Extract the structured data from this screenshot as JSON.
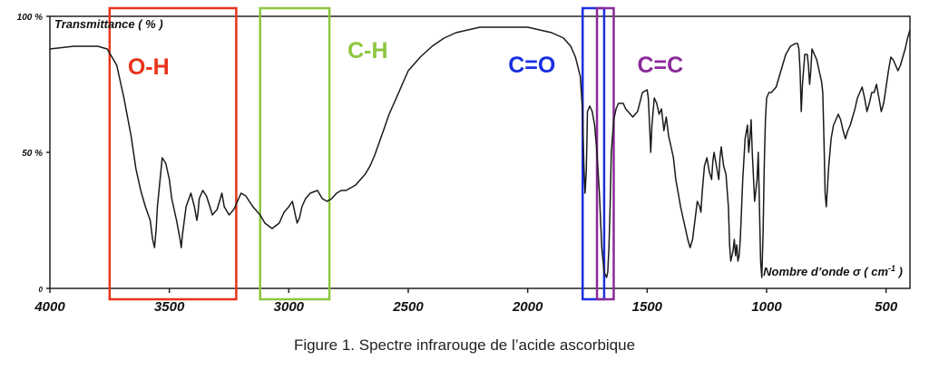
{
  "chart_data": {
    "type": "line",
    "title": "",
    "ylabel": "Transmittance  ( % )",
    "xlabel": "Nombre d’onde  σ  ( cm",
    "xlabel_sup": "-1",
    "x_reversed": true,
    "xlim": [
      4000,
      400
    ],
    "ylim": [
      0,
      100
    ],
    "grid": false,
    "x_ticks": [
      4000,
      3500,
      3000,
      2500,
      2000,
      1500,
      1000,
      500
    ],
    "y_ticks": [
      {
        "value": 100,
        "label": "100 %"
      },
      {
        "value": 50,
        "label": "50 %"
      },
      {
        "value": 0,
        "label": "0"
      }
    ],
    "series": [
      {
        "color": "#1a1a1a",
        "x": [
          4000,
          3900,
          3800,
          3760,
          3720,
          3690,
          3660,
          3640,
          3620,
          3600,
          3580,
          3570,
          3562,
          3555,
          3550,
          3530,
          3515,
          3500,
          3490,
          3470,
          3455,
          3450,
          3445,
          3430,
          3410,
          3395,
          3385,
          3380,
          3375,
          3360,
          3345,
          3330,
          3320,
          3300,
          3290,
          3280,
          3270,
          3250,
          3230,
          3200,
          3180,
          3150,
          3120,
          3100,
          3070,
          3040,
          3020,
          3000,
          2985,
          2975,
          2965,
          2955,
          2945,
          2930,
          2910,
          2880,
          2860,
          2840,
          2820,
          2800,
          2780,
          2760,
          2740,
          2720,
          2700,
          2680,
          2660,
          2640,
          2620,
          2600,
          2580,
          2560,
          2540,
          2520,
          2500,
          2450,
          2400,
          2350,
          2300,
          2250,
          2200,
          2150,
          2100,
          2050,
          2000,
          1950,
          1900,
          1850,
          1820,
          1800,
          1780,
          1770,
          1765,
          1760,
          1755,
          1752,
          1750,
          1745,
          1740,
          1730,
          1720,
          1710,
          1700,
          1690,
          1680,
          1670,
          1665,
          1660,
          1655,
          1650,
          1640,
          1630,
          1620,
          1610,
          1600,
          1590,
          1580,
          1560,
          1540,
          1520,
          1500,
          1495,
          1490,
          1485,
          1480,
          1470,
          1460,
          1450,
          1440,
          1430,
          1420,
          1410,
          1400,
          1390,
          1380,
          1370,
          1360,
          1350,
          1340,
          1330,
          1320,
          1310,
          1300,
          1290,
          1280,
          1275,
          1270,
          1265,
          1260,
          1250,
          1240,
          1230,
          1225,
          1220,
          1210,
          1200,
          1195,
          1190,
          1180,
          1170,
          1160,
          1155,
          1150,
          1140,
          1135,
          1130,
          1125,
          1120,
          1115,
          1110,
          1100,
          1090,
          1080,
          1075,
          1070,
          1065,
          1060,
          1050,
          1040,
          1035,
          1030,
          1025,
          1020,
          1015,
          1010,
          1005,
          1000,
          990,
          980,
          960,
          940,
          920,
          900,
          880,
          870,
          865,
          860,
          855,
          850,
          840,
          830,
          825,
          820,
          815,
          810,
          800,
          790,
          780,
          770,
          765,
          760,
          755,
          750,
          740,
          730,
          720,
          710,
          700,
          690,
          680,
          670,
          660,
          650,
          640,
          630,
          620,
          610,
          600,
          590,
          580,
          570,
          560,
          550,
          540,
          530,
          520,
          510,
          500,
          490,
          480,
          470,
          460,
          450,
          440,
          430,
          420,
          410,
          400
        ],
        "y": [
          88,
          89,
          89,
          88,
          82,
          70,
          56,
          44,
          36,
          30,
          25,
          18,
          15,
          22,
          30,
          48,
          46,
          40,
          33,
          25,
          18,
          15,
          20,
          30,
          35,
          30,
          25,
          28,
          33,
          36,
          34,
          30,
          27,
          29,
          32,
          35,
          30,
          27,
          29,
          35,
          34,
          30,
          27,
          24,
          22,
          24,
          28,
          30,
          32,
          28,
          24,
          26,
          30,
          33,
          35,
          36,
          33,
          32,
          33,
          35,
          36,
          36,
          37,
          38,
          40,
          42,
          45,
          49,
          54,
          59,
          64,
          68,
          72,
          76,
          80,
          85,
          89,
          92,
          94,
          95,
          96,
          96,
          96,
          96,
          96,
          95,
          94,
          92,
          89,
          85,
          78,
          65,
          45,
          35,
          43,
          55,
          65,
          66,
          67,
          65,
          60,
          50,
          35,
          15,
          6,
          4,
          6,
          15,
          30,
          50,
          62,
          66,
          68,
          68,
          68,
          66,
          65,
          63,
          65,
          72,
          73,
          70,
          60,
          50,
          60,
          70,
          68,
          64,
          66,
          58,
          63,
          56,
          52,
          48,
          40,
          35,
          30,
          26,
          22,
          18,
          15,
          18,
          25,
          32,
          30,
          28,
          35,
          40,
          45,
          48,
          43,
          40,
          47,
          50,
          45,
          40,
          48,
          52,
          45,
          42,
          30,
          16,
          10,
          14,
          18,
          12,
          16,
          10,
          12,
          18,
          40,
          55,
          60,
          50,
          55,
          62,
          50,
          32,
          40,
          50,
          30,
          10,
          4,
          20,
          45,
          62,
          70,
          72,
          72,
          74,
          80,
          86,
          89,
          90,
          90,
          88,
          80,
          65,
          75,
          86,
          86,
          82,
          75,
          80,
          88,
          86,
          84,
          80,
          76,
          72,
          55,
          35,
          30,
          45,
          55,
          60,
          62,
          64,
          62,
          58,
          55,
          58,
          60,
          63,
          66,
          70,
          72,
          74,
          70,
          65,
          68,
          72,
          72,
          75,
          70,
          65,
          68,
          74,
          80,
          85,
          84,
          82,
          80,
          82,
          85,
          88,
          92,
          95
        ]
      }
    ],
    "annotations": [
      {
        "label": "O-H",
        "color": "#e8331a",
        "x_range": [
          3750,
          3220
        ]
      },
      {
        "label": "C-H",
        "color": "#8dc63f",
        "x_range": [
          3120,
          2830
        ]
      },
      {
        "label": "C=O",
        "color": "#1a2fe0",
        "x_range": [
          1770,
          1680
        ]
      },
      {
        "label": "C=C",
        "color": "#8b2a9a",
        "x_range": [
          1710,
          1640
        ]
      }
    ]
  },
  "caption": "Figure 1. Spectre infrarouge de l’acide ascorbique"
}
